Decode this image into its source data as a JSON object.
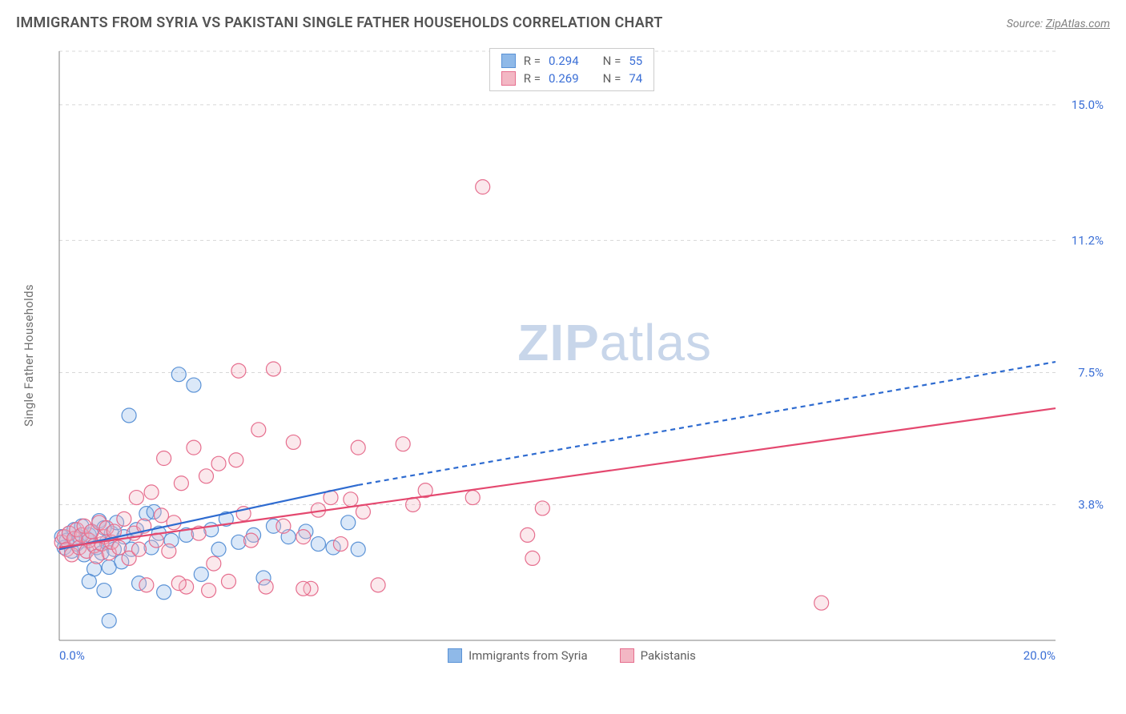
{
  "header": {
    "title": "IMMIGRANTS FROM SYRIA VS PAKISTANI SINGLE FATHER HOUSEHOLDS CORRELATION CHART",
    "source_prefix": "Source: ",
    "source_link": "ZipAtlas.com"
  },
  "chart": {
    "type": "scatter",
    "y_axis_label": "Single Father Households",
    "xlim": [
      0,
      20
    ],
    "ylim": [
      0,
      16.5
    ],
    "x_ticks": [
      {
        "v": 0.0,
        "label": "0.0%"
      },
      {
        "v": 20.0,
        "label": "20.0%"
      }
    ],
    "y_ticks": [
      {
        "v": 3.8,
        "label": "3.8%"
      },
      {
        "v": 7.5,
        "label": "7.5%"
      },
      {
        "v": 11.2,
        "label": "11.2%"
      },
      {
        "v": 15.0,
        "label": "15.0%"
      }
    ],
    "background_color": "#ffffff",
    "grid_color": "#d8d8d8",
    "axis_color": "#808080",
    "marker_radius": 9,
    "marker_stroke_width": 1.2,
    "marker_fill_opacity": 0.32,
    "series": [
      {
        "key": "syria",
        "label": "Immigrants from Syria",
        "color_fill": "#8fb9e8",
        "color_stroke": "#5a92d6",
        "line_color": "#2e6bd0",
        "line_dash_extrap": "6 5",
        "R": "0.294",
        "N": "55",
        "regression": {
          "x1": 0.0,
          "y1": 2.55,
          "x2": 6.0,
          "y2": 4.35,
          "x_ext": 20.0,
          "y_ext": 7.8
        },
        "points": [
          [
            0.05,
            2.9
          ],
          [
            0.1,
            2.6
          ],
          [
            0.15,
            2.8
          ],
          [
            0.2,
            3.0
          ],
          [
            0.25,
            2.5
          ],
          [
            0.3,
            3.1
          ],
          [
            0.35,
            2.7
          ],
          [
            0.4,
            2.9
          ],
          [
            0.45,
            3.2
          ],
          [
            0.5,
            2.4
          ],
          [
            0.55,
            2.85
          ],
          [
            0.6,
            2.95
          ],
          [
            0.65,
            3.05
          ],
          [
            0.7,
            2.0
          ],
          [
            0.75,
            2.6
          ],
          [
            0.8,
            3.35
          ],
          [
            0.85,
            2.45
          ],
          [
            0.9,
            3.15
          ],
          [
            0.95,
            2.75
          ],
          [
            1.0,
            2.05
          ],
          [
            1.05,
            3.0
          ],
          [
            1.1,
            2.55
          ],
          [
            1.15,
            3.3
          ],
          [
            1.25,
            2.2
          ],
          [
            1.3,
            2.9
          ],
          [
            1.4,
            6.3
          ],
          [
            1.45,
            2.55
          ],
          [
            1.55,
            3.1
          ],
          [
            1.6,
            1.6
          ],
          [
            1.75,
            3.55
          ],
          [
            1.85,
            2.6
          ],
          [
            2.0,
            3.0
          ],
          [
            2.1,
            1.35
          ],
          [
            2.25,
            2.8
          ],
          [
            2.4,
            7.45
          ],
          [
            2.55,
            2.95
          ],
          [
            2.7,
            7.15
          ],
          [
            2.85,
            1.85
          ],
          [
            3.05,
            3.1
          ],
          [
            3.2,
            2.55
          ],
          [
            3.35,
            3.4
          ],
          [
            3.6,
            2.75
          ],
          [
            3.9,
            2.95
          ],
          [
            4.1,
            1.75
          ],
          [
            4.3,
            3.2
          ],
          [
            4.6,
            2.9
          ],
          [
            4.95,
            3.05
          ],
          [
            5.2,
            2.7
          ],
          [
            5.5,
            2.6
          ],
          [
            5.8,
            3.3
          ],
          [
            6.0,
            2.55
          ],
          [
            1.0,
            0.55
          ],
          [
            0.6,
            1.65
          ],
          [
            0.9,
            1.4
          ],
          [
            1.9,
            3.6
          ]
        ]
      },
      {
        "key": "pakistani",
        "label": "Pakistanis",
        "color_fill": "#f3b7c4",
        "color_stroke": "#e66e8e",
        "line_color": "#e4486f",
        "line_dash_extrap": "",
        "R": "0.269",
        "N": "74",
        "regression": {
          "x1": 0.0,
          "y1": 2.6,
          "x2": 20.0,
          "y2": 6.5,
          "x_ext": 20.0,
          "y_ext": 6.5
        },
        "points": [
          [
            0.05,
            2.75
          ],
          [
            0.1,
            2.9
          ],
          [
            0.15,
            2.55
          ],
          [
            0.2,
            3.0
          ],
          [
            0.25,
            2.4
          ],
          [
            0.3,
            2.85
          ],
          [
            0.35,
            3.1
          ],
          [
            0.4,
            2.6
          ],
          [
            0.45,
            2.95
          ],
          [
            0.5,
            3.2
          ],
          [
            0.55,
            2.5
          ],
          [
            0.6,
            2.8
          ],
          [
            0.65,
            3.05
          ],
          [
            0.7,
            2.65
          ],
          [
            0.75,
            2.35
          ],
          [
            0.8,
            3.3
          ],
          [
            0.85,
            2.7
          ],
          [
            0.9,
            2.9
          ],
          [
            0.95,
            3.15
          ],
          [
            1.0,
            2.45
          ],
          [
            1.05,
            2.75
          ],
          [
            1.1,
            3.05
          ],
          [
            1.2,
            2.6
          ],
          [
            1.3,
            3.4
          ],
          [
            1.4,
            2.3
          ],
          [
            1.5,
            3.0
          ],
          [
            1.55,
            4.0
          ],
          [
            1.6,
            2.55
          ],
          [
            1.7,
            3.2
          ],
          [
            1.75,
            1.55
          ],
          [
            1.85,
            4.15
          ],
          [
            1.95,
            2.8
          ],
          [
            2.05,
            3.5
          ],
          [
            2.1,
            5.1
          ],
          [
            2.2,
            2.5
          ],
          [
            2.3,
            3.3
          ],
          [
            2.45,
            4.4
          ],
          [
            2.55,
            1.5
          ],
          [
            2.7,
            5.4
          ],
          [
            2.8,
            3.0
          ],
          [
            2.95,
            4.6
          ],
          [
            3.1,
            2.15
          ],
          [
            3.2,
            4.95
          ],
          [
            3.4,
            1.65
          ],
          [
            3.55,
            5.05
          ],
          [
            3.6,
            7.55
          ],
          [
            3.7,
            3.55
          ],
          [
            3.85,
            2.8
          ],
          [
            4.0,
            5.9
          ],
          [
            4.15,
            1.5
          ],
          [
            4.3,
            7.6
          ],
          [
            4.5,
            3.2
          ],
          [
            4.7,
            5.55
          ],
          [
            4.9,
            2.9
          ],
          [
            5.05,
            1.45
          ],
          [
            5.2,
            3.65
          ],
          [
            5.45,
            4.0
          ],
          [
            5.65,
            2.7
          ],
          [
            5.85,
            3.95
          ],
          [
            6.0,
            5.4
          ],
          [
            6.1,
            3.6
          ],
          [
            6.4,
            1.55
          ],
          [
            6.9,
            5.5
          ],
          [
            7.1,
            3.8
          ],
          [
            7.35,
            4.2
          ],
          [
            8.3,
            4.0
          ],
          [
            8.5,
            12.7
          ],
          [
            9.4,
            2.95
          ],
          [
            9.5,
            2.3
          ],
          [
            9.7,
            3.7
          ],
          [
            15.3,
            1.05
          ],
          [
            3.0,
            1.4
          ],
          [
            2.4,
            1.6
          ],
          [
            4.9,
            1.45
          ]
        ]
      }
    ]
  },
  "legend_top": {
    "rows": [
      {
        "swatch_fill": "#8fb9e8",
        "swatch_stroke": "#5a92d6",
        "r_label": "R =",
        "r_val": "0.294",
        "n_label": "N =",
        "n_val": "55"
      },
      {
        "swatch_fill": "#f3b7c4",
        "swatch_stroke": "#e66e8e",
        "r_label": "R =",
        "r_val": "0.269",
        "n_label": "N =",
        "n_val": "74"
      }
    ]
  },
  "watermark": {
    "bold": "ZIP",
    "rest": "atlas"
  }
}
